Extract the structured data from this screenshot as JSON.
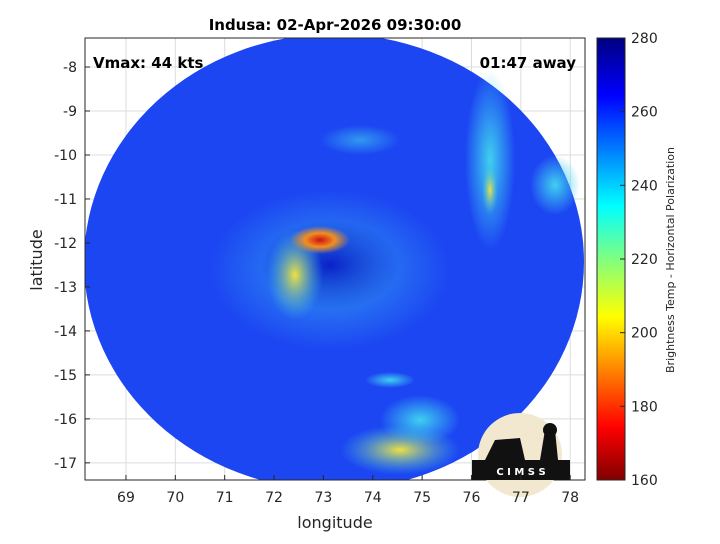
{
  "chart_data": {
    "type": "heatmap",
    "title": "Indusa: 02-Apr-2026 09:30:00",
    "annotations": [
      "Vmax: 44 kts",
      "01:47 away"
    ],
    "x_label": "longitude",
    "y_label": "latitude",
    "xlim": [
      68.17,
      78.3
    ],
    "xticks": [
      69,
      70,
      71,
      72,
      73,
      74,
      75,
      76,
      77,
      78
    ],
    "ylim": [
      -17.39,
      -7.34
    ],
    "yticks": [
      -8,
      -9,
      -10,
      -11,
      -12,
      -13,
      -14,
      -15,
      -16,
      -17
    ],
    "grid": true,
    "colorbar": {
      "label": "Brightness Temp - Horizontal Polarization",
      "lim": [
        160,
        280
      ],
      "ticks": [
        160,
        180,
        200,
        220,
        240,
        260,
        280
      ]
    },
    "logo": "C I M S S"
  }
}
